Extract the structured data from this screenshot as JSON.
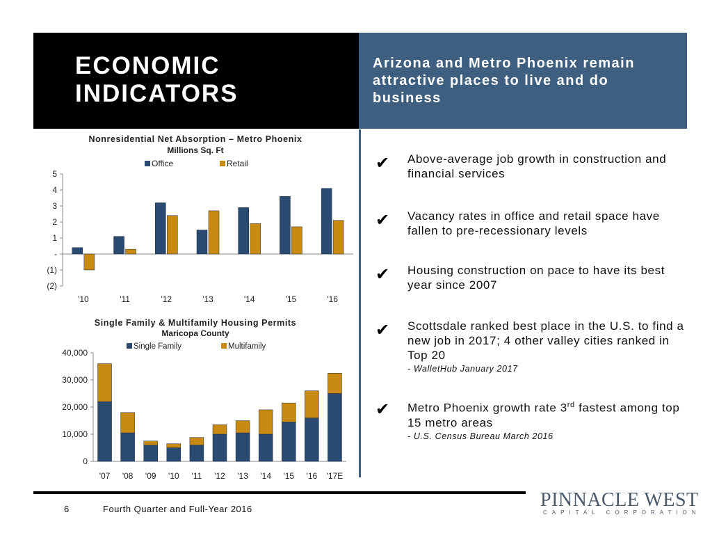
{
  "header": {
    "title": "ECONOMIC INDICATORS",
    "subtitle": "Arizona and Metro Phoenix remain attractive places to live and do business"
  },
  "colors": {
    "header_dark": "#000000",
    "header_blue": "#3f5f80",
    "series_blue": "#2b4a72",
    "series_gold": "#c88a10"
  },
  "chart_data": [
    {
      "type": "bar",
      "title": "Nonresidential Net Absorption – Metro Phoenix",
      "subtitle": "Millions Sq. Ft",
      "categories": [
        "'10",
        "'11",
        "'12",
        "'13",
        "'14",
        "'15",
        "'16"
      ],
      "series": [
        {
          "name": "Office",
          "values": [
            0.4,
            1.1,
            3.2,
            1.5,
            2.9,
            3.6,
            4.1
          ]
        },
        {
          "name": "Retail",
          "values": [
            -1.0,
            0.3,
            2.4,
            2.7,
            1.9,
            1.7,
            2.1
          ]
        }
      ],
      "ylim": [
        -2,
        5
      ],
      "yticks": [
        -2,
        -1,
        0,
        1,
        2,
        3,
        4,
        5
      ],
      "ytick_labels": [
        "(2)",
        "(1)",
        "-",
        "1",
        "2",
        "3",
        "4",
        "5"
      ],
      "legend": "top-center"
    },
    {
      "type": "bar",
      "stacked": true,
      "title": "Single Family & Multifamily Housing Permits",
      "subtitle": "Maricopa County",
      "categories": [
        "'07",
        "'08",
        "'09",
        "'10",
        "'11",
        "'12",
        "'13",
        "'14",
        "'15",
        "'16",
        "'17E"
      ],
      "series": [
        {
          "name": "Single Family",
          "values": [
            22000,
            10500,
            6000,
            5000,
            6000,
            10000,
            10500,
            10000,
            14500,
            16000,
            25000
          ]
        },
        {
          "name": "Multifamily",
          "values": [
            14000,
            7500,
            1500,
            1500,
            2800,
            3500,
            4500,
            9000,
            7000,
            10000,
            7500
          ]
        }
      ],
      "ylim": [
        0,
        40000
      ],
      "yticks": [
        0,
        10000,
        20000,
        30000,
        40000
      ],
      "ytick_labels": [
        "0",
        "10,000",
        "20,000",
        "30,000",
        "40,000"
      ],
      "legend": "top-center"
    }
  ],
  "bullets": [
    {
      "text": "Above-average job growth in construction and financial services",
      "source": ""
    },
    {
      "text": "Vacancy rates in office and retail space have fallen to pre-recessionary levels",
      "source": ""
    },
    {
      "text": "Housing construction on pace to have its best year since 2007",
      "source": ""
    },
    {
      "text": "Scottsdale ranked best place in the U.S. to find a new job in 2017; 4 other valley cities ranked in Top 20",
      "source": "- WalletHub January 2017"
    },
    {
      "text_pre": "Metro Phoenix growth rate 3",
      "text_sup": "rd",
      "text_post": " fastest among top 15 metro areas",
      "source": "- U.S. Census Bureau March 2016"
    }
  ],
  "footer": {
    "page_number": "6",
    "text": "Fourth Quarter and Full-Year 2016"
  },
  "logo": {
    "name": "PINNACLE WEST",
    "tagline": "CAPITAL CORPORATION"
  }
}
